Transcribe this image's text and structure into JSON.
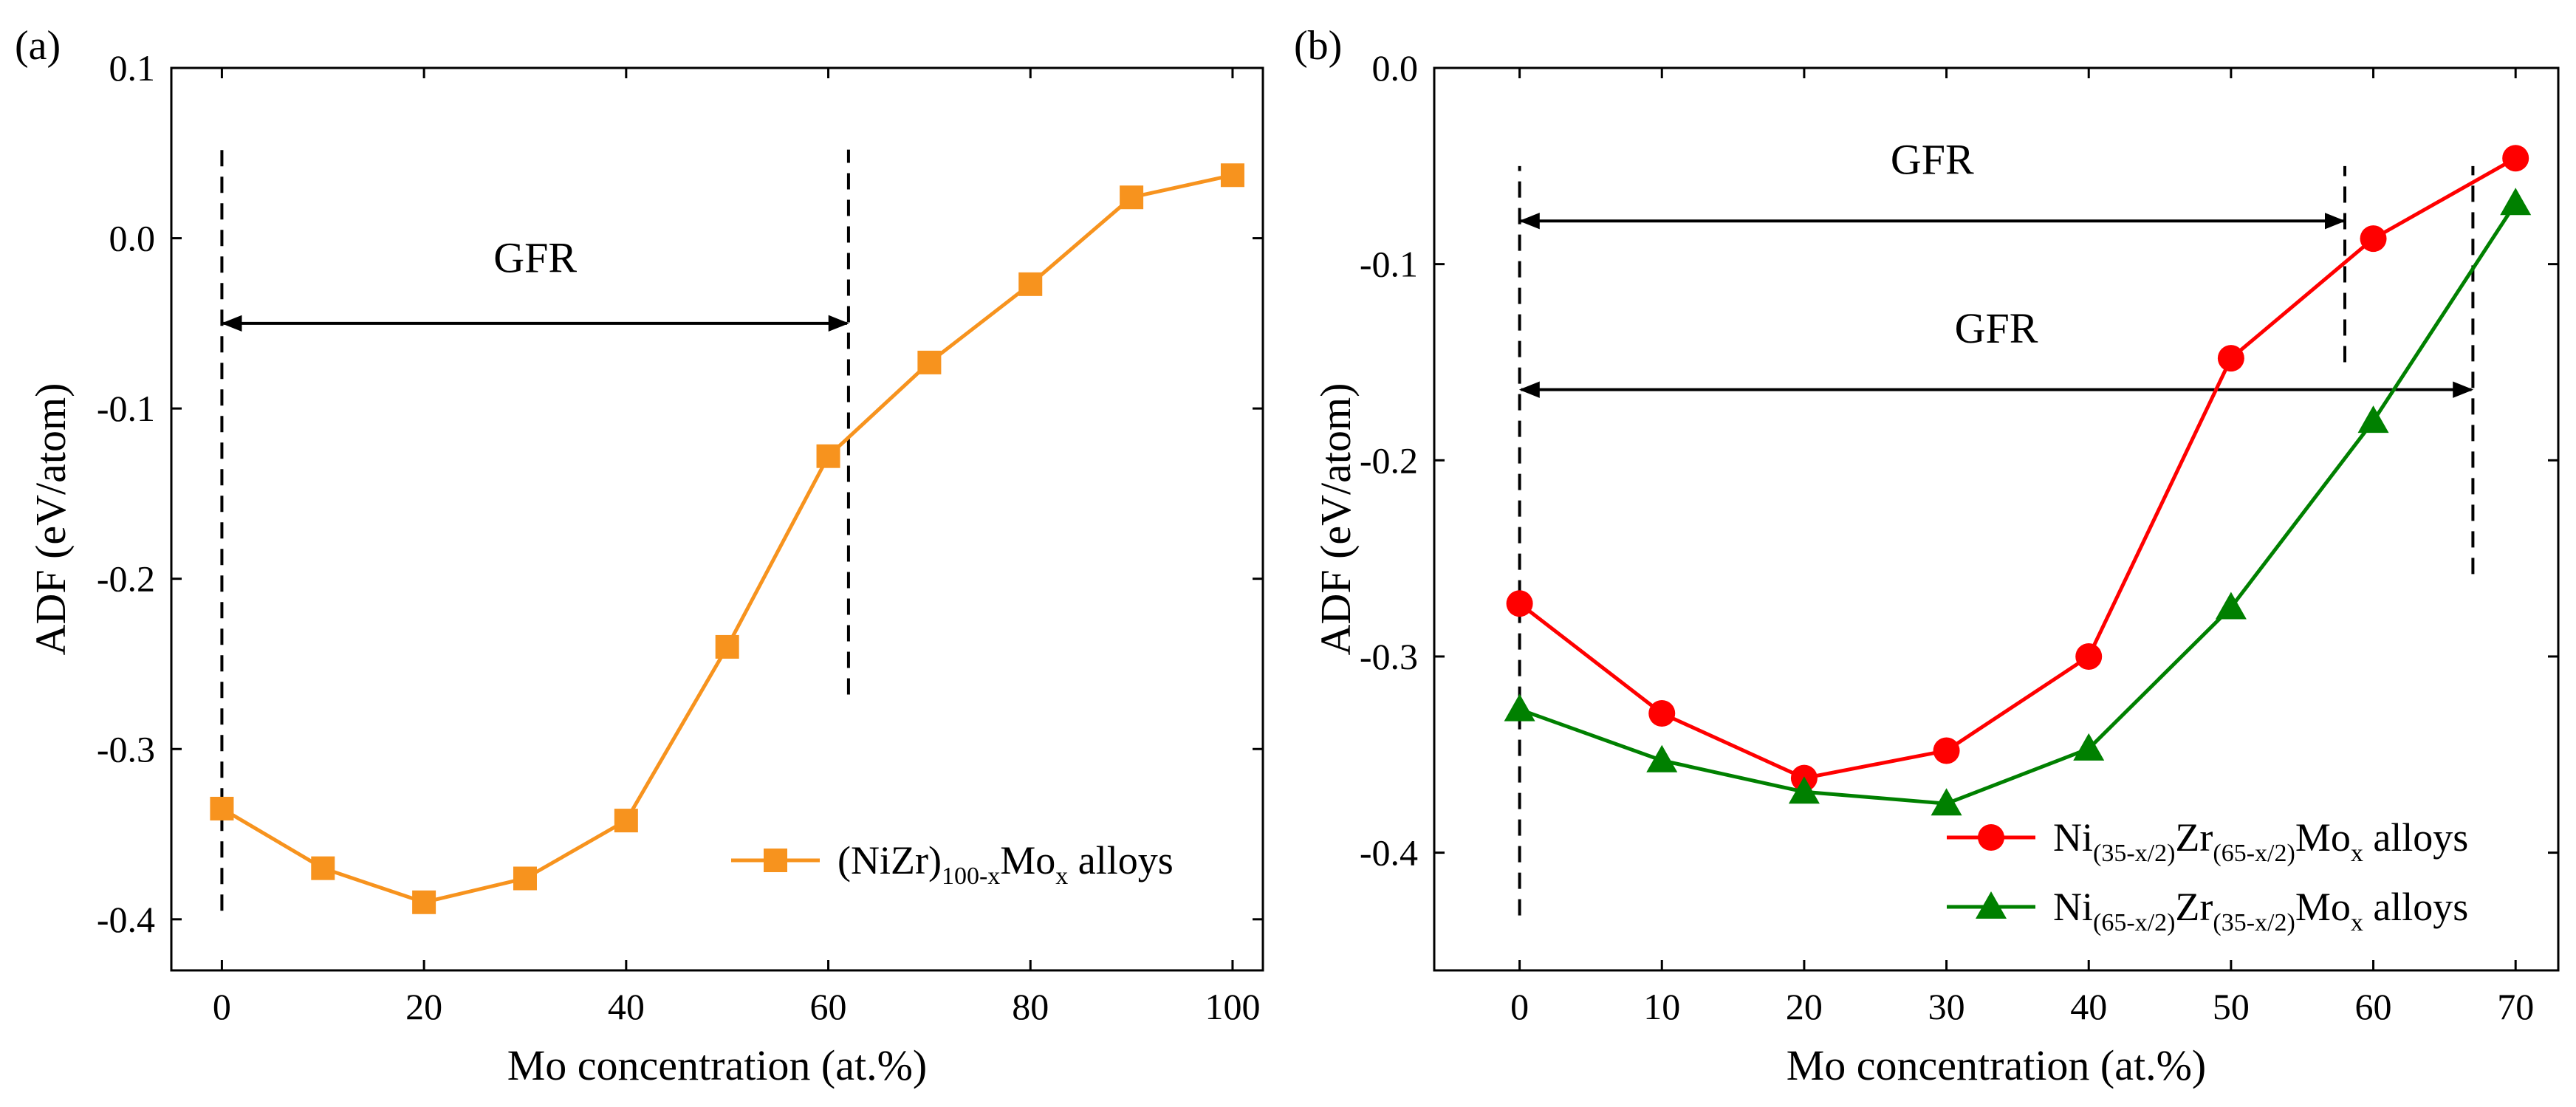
{
  "chart_data": [
    {
      "panel_label": "(a)",
      "type": "line",
      "xlabel": "Mo concentration (at.%)",
      "ylabel": "ADF (eV/atom)",
      "xlim": [
        -5,
        103
      ],
      "ylim": [
        -0.43,
        0.1
      ],
      "xticks": [
        0,
        20,
        40,
        60,
        80,
        100
      ],
      "yticks": [
        0.1,
        0.0,
        -0.1,
        -0.2,
        -0.3,
        -0.4
      ],
      "ytick_labels": [
        "0.1",
        "0.0",
        "-0.1",
        "-0.2",
        "-0.3",
        "-0.4"
      ],
      "series": [
        {
          "name": "(NiZr)100-xMox alloys",
          "color": "#F7931E",
          "marker": "square",
          "x": [
            0,
            10,
            20,
            30,
            40,
            50,
            60,
            70,
            80,
            90,
            100
          ],
          "y": [
            -0.335,
            -0.37,
            -0.39,
            -0.376,
            -0.342,
            -0.24,
            -0.128,
            -0.073,
            -0.027,
            0.024,
            0.037
          ]
        }
      ],
      "legend": {
        "location": "lower-right",
        "entries": [
          {
            "parts": [
              "(NiZr)",
              "100-x",
              "Mo",
              "x",
              " alloys"
            ]
          }
        ]
      },
      "annotations": [
        {
          "type": "vline",
          "x": 0,
          "y_range": [
            -0.395,
            0.052
          ],
          "style": "dashed"
        },
        {
          "type": "vline",
          "x": 62,
          "y_range": [
            -0.268,
            0.052
          ],
          "style": "dashed"
        },
        {
          "type": "double-arrow",
          "x_range": [
            0,
            62
          ],
          "y": -0.05,
          "label": "GFR",
          "label_y": -0.02
        }
      ]
    },
    {
      "panel_label": "(b)",
      "type": "line",
      "xlabel": "Mo concentration (at.%)",
      "ylabel": "ADF (eV/atom)",
      "xlim": [
        -6,
        73
      ],
      "ylim": [
        -0.46,
        0.0
      ],
      "xticks": [
        0,
        10,
        20,
        30,
        40,
        50,
        60,
        70
      ],
      "yticks": [
        0.0,
        -0.1,
        -0.2,
        -0.3,
        -0.4
      ],
      "ytick_labels": [
        "0.0",
        "-0.1",
        "-0.2",
        "-0.3",
        "-0.4"
      ],
      "series": [
        {
          "name": "Ni(35-x/2)Zr(65-x/2)Mox alloys",
          "color": "#FF0000",
          "marker": "circle",
          "x": [
            0,
            10,
            20,
            30,
            40,
            50,
            60,
            70
          ],
          "y": [
            -0.273,
            -0.329,
            -0.362,
            -0.348,
            -0.3,
            -0.148,
            -0.087,
            -0.046
          ]
        },
        {
          "name": "Ni(65-x/2)Zr(35-x/2)Mox alloys",
          "color": "#008000",
          "marker": "triangle",
          "x": [
            0,
            10,
            20,
            30,
            40,
            50,
            60,
            70
          ],
          "y": [
            -0.327,
            -0.353,
            -0.369,
            -0.375,
            -0.347,
            -0.275,
            -0.18,
            -0.069
          ]
        }
      ],
      "legend": {
        "location": "lower-right",
        "entries": [
          {
            "parts": [
              "Ni",
              "(35-x/2)",
              "Zr",
              "(65-x/2)",
              "Mo",
              "x",
              " alloys"
            ]
          },
          {
            "parts": [
              "Ni",
              "(65-x/2)",
              "Zr",
              "(35-x/2)",
              "Mo",
              "x",
              " alloys"
            ]
          }
        ]
      },
      "annotations": [
        {
          "type": "vline",
          "x": 0,
          "y_range": [
            -0.432,
            -0.05
          ],
          "style": "dashed"
        },
        {
          "type": "vline",
          "x": 58,
          "y_range": [
            -0.15,
            -0.05
          ],
          "style": "dashed"
        },
        {
          "type": "vline",
          "x": 67,
          "y_range": [
            -0.258,
            -0.05
          ],
          "style": "dashed"
        },
        {
          "type": "double-arrow",
          "x_range": [
            0,
            58
          ],
          "y": -0.078,
          "label": "GFR",
          "label_y": -0.054
        },
        {
          "type": "double-arrow",
          "x_range": [
            0,
            67
          ],
          "y": -0.164,
          "label": "GFR",
          "label_y": -0.14
        }
      ]
    }
  ]
}
